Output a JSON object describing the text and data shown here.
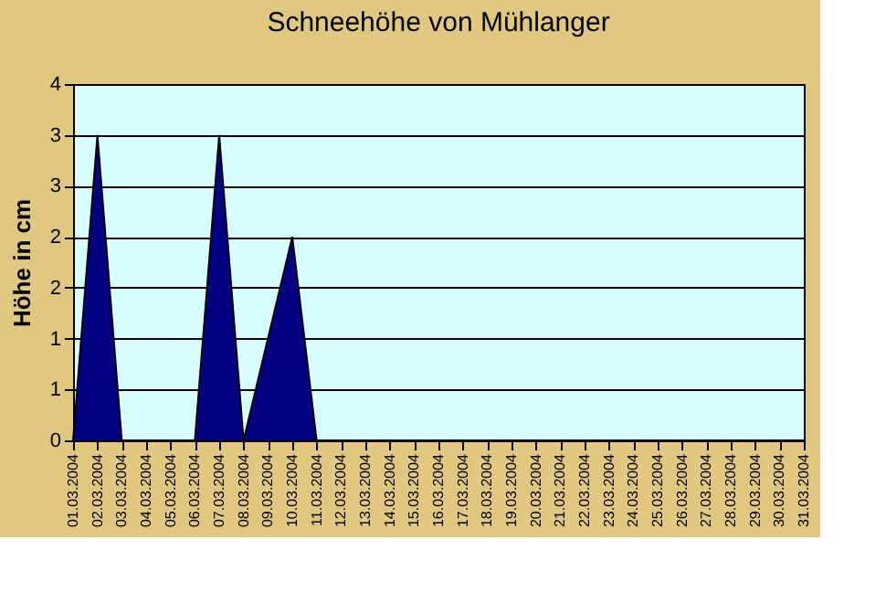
{
  "chart_data": {
    "type": "area",
    "title": "Schneehöhe von Mühlanger",
    "ylabel": "Höhe in cm",
    "categories": [
      "01.03.2004",
      "02.03.2004",
      "03.03.2004",
      "04.03.2004",
      "05.03.2004",
      "06.03.2004",
      "07.03.2004",
      "08.03.2004",
      "09.03.2004",
      "10.03.2004",
      "11.03.2004",
      "12.03.2004",
      "13.03.2004",
      "14.03.2004",
      "15.03.2004",
      "16.03.2004",
      "17.03.2004",
      "18.03.2004",
      "19.03.2004",
      "20.03.2004",
      "21.03.2004",
      "22.03.2004",
      "23.03.2004",
      "24.03.2004",
      "25.03.2004",
      "26.03.2004",
      "27.03.2004",
      "28.03.2004",
      "29.03.2004",
      "30.03.2004",
      "31.03.2004"
    ],
    "values": [
      0,
      3,
      0,
      0,
      0,
      0,
      3,
      0,
      1,
      2,
      0,
      0,
      0,
      0,
      0,
      0,
      0,
      0,
      0,
      0,
      0,
      0,
      0,
      0,
      0,
      0,
      0,
      0,
      0,
      0,
      0
    ],
    "color": "#000080",
    "ylim": [
      0,
      3.5
    ],
    "yticks": [
      0,
      {
        "value": 0.5,
        "label": "1"
      },
      1,
      {
        "value": 1.5,
        "label": "2"
      },
      2,
      {
        "value": 2.5,
        "label": "3"
      },
      3,
      {
        "value": 3.5,
        "label": "4"
      }
    ],
    "grid": "y"
  }
}
